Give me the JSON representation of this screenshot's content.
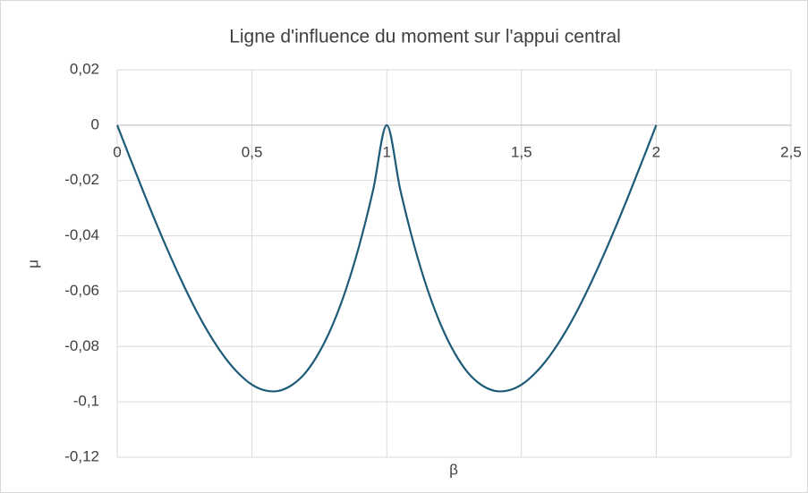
{
  "chart_data": {
    "type": "line",
    "title": "Ligne d'influence du moment sur l'appui central",
    "x_label": "β",
    "y_label": "μ",
    "x": [
      0,
      0.05,
      0.1,
      0.15,
      0.2,
      0.25,
      0.3,
      0.35,
      0.4,
      0.45,
      0.5,
      0.55,
      0.6,
      0.65,
      0.7,
      0.75,
      0.8,
      0.85,
      0.9,
      0.95,
      1,
      1.05,
      1.1,
      1.15,
      1.2,
      1.25,
      1.3,
      1.35,
      1.4,
      1.45,
      1.5,
      1.55,
      1.6,
      1.65,
      1.7,
      1.75,
      1.8,
      1.85,
      1.9,
      1.95,
      2
    ],
    "series": [
      {
        "name": "μ",
        "color": "#1d5b78",
        "values": [
          0,
          -0.0125,
          -0.0248,
          -0.0367,
          -0.048,
          -0.0586,
          -0.0683,
          -0.0768,
          -0.084,
          -0.0897,
          -0.0938,
          -0.0959,
          -0.096,
          -0.0938,
          -0.0893,
          -0.082,
          -0.072,
          -0.059,
          -0.0428,
          -0.0232,
          0,
          -0.0232,
          -0.0428,
          -0.059,
          -0.072,
          -0.082,
          -0.0893,
          -0.0938,
          -0.096,
          -0.0959,
          -0.0938,
          -0.0897,
          -0.084,
          -0.0768,
          -0.0683,
          -0.0586,
          -0.048,
          -0.0367,
          -0.0248,
          -0.0125,
          0
        ]
      }
    ],
    "xlim": [
      0,
      2.5
    ],
    "xticks": [
      0,
      {
        "value": 0.5,
        "label": "0,5"
      },
      1,
      {
        "value": 1.5,
        "label": "1,5"
      },
      2,
      {
        "value": 2.5,
        "label": "2,5"
      }
    ],
    "ylim": [
      -0.12,
      0.02
    ],
    "yticks": [
      {
        "value": 0.02,
        "label": "0,02"
      },
      0,
      {
        "value": -0.02,
        "label": "-0,02"
      },
      {
        "value": -0.04,
        "label": "-0,04"
      },
      {
        "value": -0.06,
        "label": "-0,06"
      },
      {
        "value": -0.08,
        "label": "-0,08"
      },
      {
        "value": -0.1,
        "label": "-0,1"
      },
      {
        "value": -0.12,
        "label": "-0,12"
      }
    ],
    "grid": true
  }
}
